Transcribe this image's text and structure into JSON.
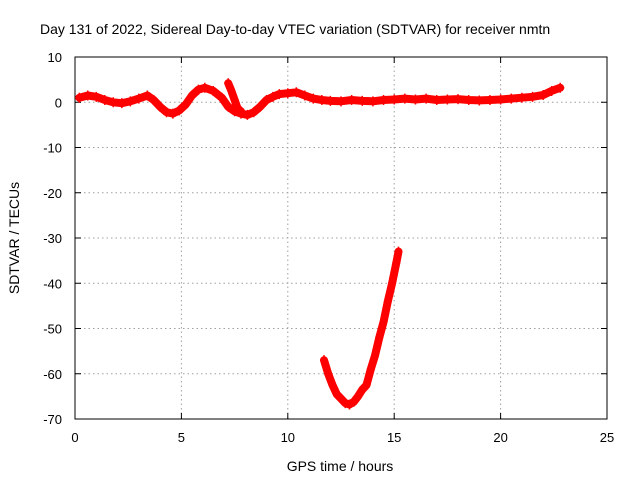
{
  "chart_data": {
    "type": "scatter",
    "title": "Day 131 of 2022, Sidereal Day-to-day VTEC variation (SDTVAR) for receiver nmtn",
    "xlabel": "GPS time / hours",
    "ylabel": "SDTVAR / TECUs",
    "xlim": [
      0,
      25
    ],
    "ylim": [
      -70,
      10
    ],
    "grid": true,
    "x_ticks": [
      0,
      5,
      10,
      15,
      20,
      25
    ],
    "y_ticks": [
      10,
      0,
      -10,
      -20,
      -30,
      -40,
      -50,
      -60,
      -70
    ],
    "x_tick_labels": [
      "0",
      "5",
      "10",
      "15",
      "20",
      "25"
    ],
    "y_tick_labels": [
      "10",
      "0",
      "-10",
      "-20",
      "-30",
      "-40",
      "-50",
      "-60",
      "-70"
    ],
    "series": [
      {
        "name": "main arc",
        "color": "#ff0000",
        "x": [
          0.2,
          0.6,
          1.0,
          1.4,
          1.8,
          2.2,
          2.6,
          3.0,
          3.4,
          3.7,
          4.0,
          4.3,
          4.6,
          4.9,
          5.2,
          5.5,
          5.8,
          6.1,
          6.5,
          6.9,
          7.2,
          7.5,
          7.8,
          8.1,
          8.4,
          8.7,
          9.0,
          9.3,
          9.6,
          10.0,
          10.4,
          10.8,
          11.2,
          11.6,
          12.0,
          12.5,
          13.0,
          13.5,
          14.0,
          14.5,
          15.0,
          15.5,
          16.0,
          16.5,
          17.0,
          17.5,
          18.0,
          18.5,
          19.0,
          19.5,
          20.0,
          20.5,
          21.0,
          21.5,
          22.0,
          22.4,
          22.8
        ],
        "y": [
          1.0,
          1.5,
          1.2,
          0.5,
          0.0,
          -0.2,
          0.2,
          0.8,
          1.5,
          0.5,
          -1.0,
          -2.2,
          -2.5,
          -1.8,
          -0.5,
          1.5,
          2.8,
          3.2,
          2.5,
          1.0,
          -1.0,
          -2.0,
          -2.5,
          -2.8,
          -2.2,
          -1.0,
          0.5,
          1.2,
          1.8,
          2.0,
          2.2,
          1.5,
          0.8,
          0.5,
          0.3,
          0.2,
          0.5,
          0.3,
          0.2,
          0.5,
          0.6,
          0.8,
          0.6,
          0.8,
          0.5,
          0.6,
          0.7,
          0.5,
          0.4,
          0.5,
          0.6,
          0.8,
          1.0,
          1.2,
          1.6,
          2.5,
          3.2
        ]
      },
      {
        "name": "spike",
        "color": "#ff0000",
        "x": [
          7.2,
          7.35,
          7.5,
          7.65,
          7.8
        ],
        "y": [
          4.2,
          2.5,
          0.5,
          -1.5,
          -2.0
        ]
      },
      {
        "name": "dip",
        "color": "#ff0000",
        "x": [
          11.7,
          11.9,
          12.1,
          12.3,
          12.5,
          12.7,
          12.9,
          13.1,
          13.3,
          13.5,
          13.7,
          13.9,
          14.1,
          14.3,
          14.5,
          14.7,
          14.9,
          15.1,
          15.2
        ],
        "y": [
          -57,
          -60,
          -62.5,
          -64.5,
          -65.5,
          -66.5,
          -66.8,
          -66.2,
          -65,
          -63.5,
          -62.5,
          -59,
          -56,
          -52,
          -48.5,
          -44,
          -40,
          -35.5,
          -33
        ]
      }
    ]
  }
}
